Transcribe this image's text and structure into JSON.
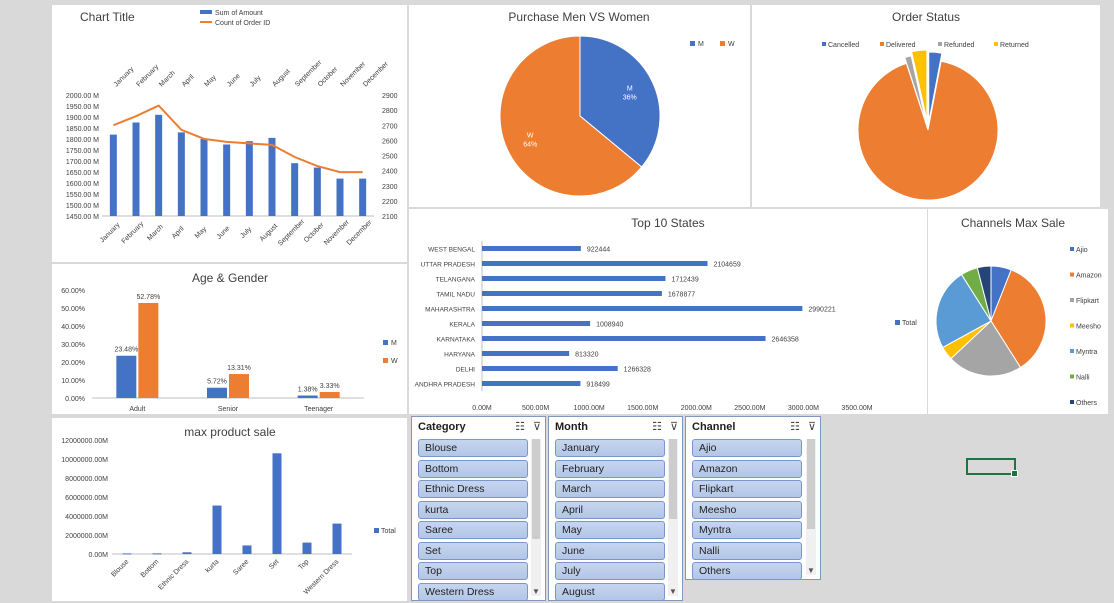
{
  "sales_panel": {
    "title": "Chart Title",
    "legend": [
      "Sum of Amount",
      "Count of Order ID"
    ],
    "colors": [
      "#4472c4",
      "#ed7d31"
    ]
  },
  "purchase_panel": {
    "title": "Purchase Men VS Women",
    "legend": [
      "M",
      "W"
    ]
  },
  "status_panel": {
    "title": "Order Status",
    "legend": [
      "Cancelled",
      "Delivered",
      "Refunded",
      "Returned"
    ]
  },
  "age_panel": {
    "title": "Age & Gender",
    "legend": [
      "M",
      "W"
    ]
  },
  "states_panel": {
    "title": "Top 10 States"
  },
  "channels_panel": {
    "title": "Channels  Max Sale",
    "legend_total": "Total"
  },
  "product_panel": {
    "title": "max product sale",
    "legend_total": "Total"
  },
  "slicers": {
    "category": {
      "title": "Category",
      "items": [
        "Blouse",
        "Bottom",
        "Ethnic Dress",
        "kurta",
        "Saree",
        "Set",
        "Top",
        "Western Dress"
      ]
    },
    "month": {
      "title": "Month",
      "items": [
        "January",
        "February",
        "March",
        "April",
        "May",
        "June",
        "July",
        "August"
      ]
    },
    "channel": {
      "title": "Channel",
      "items": [
        "Ajio",
        "Amazon",
        "Flipkart",
        "Meesho",
        "Myntra",
        "Nalli",
        "Others"
      ]
    }
  },
  "chart_data": [
    {
      "type": "bar",
      "title": "Chart Title",
      "categories": [
        "January",
        "February",
        "March",
        "April",
        "May",
        "June",
        "July",
        "August",
        "September",
        "October",
        "November",
        "December"
      ],
      "series": [
        {
          "name": "Sum of Amount",
          "values": [
            1820,
            1875,
            1910,
            1830,
            1800,
            1775,
            1790,
            1805,
            1690,
            1670,
            1620,
            1620
          ]
        },
        {
          "name": "Count of Order ID",
          "values": [
            2700,
            2760,
            2830,
            2670,
            2610,
            2590,
            2580,
            2570,
            2490,
            2430,
            2390,
            2390
          ]
        }
      ],
      "ylim": [
        1450,
        2000
      ],
      "y2lim": [
        2100,
        2900
      ],
      "yticks": [
        "2000.00 M",
        "1950.00 M",
        "1900.00 M",
        "1850.00 M",
        "1800.00 M",
        "1750.00 M",
        "1700.00 M",
        "1650.00 M",
        "1600.00 M",
        "1550.00 M",
        "1500.00 M",
        "1450.00 M"
      ],
      "y2ticks": [
        "2900",
        "2800",
        "2700",
        "2600",
        "2500",
        "2400",
        "2300",
        "2200",
        "2100"
      ]
    },
    {
      "type": "pie",
      "title": "Purchase Men VS Women",
      "categories": [
        "M",
        "W"
      ],
      "values": [
        36,
        64
      ],
      "labels": [
        "M\n36%",
        "W\n64%"
      ],
      "colors": [
        "#4472c4",
        "#ed7d31"
      ]
    },
    {
      "type": "pie",
      "title": "Order Status",
      "categories": [
        "Cancelled",
        "Delivered",
        "Refunded",
        "Returned"
      ],
      "values": [
        3,
        92,
        1.5,
        3.5
      ],
      "colors": [
        "#4472c4",
        "#ed7d31",
        "#a5a5a5",
        "#ffc000"
      ]
    },
    {
      "type": "bar",
      "title": "Age & Gender",
      "categories": [
        "Adult",
        "Senior",
        "Teenager"
      ],
      "series": [
        {
          "name": "M",
          "values": [
            23.48,
            5.72,
            1.38
          ],
          "labels": [
            "23.48%",
            "5.72%",
            "1.38%"
          ]
        },
        {
          "name": "W",
          "values": [
            52.78,
            13.31,
            3.33
          ],
          "labels": [
            "52.78%",
            "13.31%",
            "3.33%"
          ]
        }
      ],
      "ylim": [
        0,
        60
      ],
      "yticks": [
        "60.00%",
        "50.00%",
        "40.00%",
        "30.00%",
        "20.00%",
        "10.00%",
        "0.00%"
      ]
    },
    {
      "type": "bar",
      "orientation": "horizontal",
      "title": "Top 10 States",
      "categories": [
        "WEST BENGAL",
        "UTTAR PRADESH",
        "TELANGANA",
        "TAMIL NADU",
        "MAHARASHTRA",
        "KERALA",
        "KARNATAKA",
        "HARYANA",
        "DELHI",
        "ANDHRA PRADESH"
      ],
      "values": [
        922444,
        2104659,
        1712439,
        1678877,
        2990221,
        1008940,
        2646358,
        813320,
        1266328,
        918499
      ],
      "xlim": [
        0,
        3500000
      ],
      "xticks": [
        "0.00M",
        "500.00M",
        "1000.00M",
        "1500.00M",
        "2000.00M",
        "2500.00M",
        "3000.00M",
        "3500.00M"
      ]
    },
    {
      "type": "pie",
      "title": "Channels  Max Sale",
      "categories": [
        "Ajio",
        "Amazon",
        "Flipkart",
        "Meesho",
        "Myntra",
        "Nalli",
        "Others"
      ],
      "values": [
        6,
        35,
        22,
        4,
        24,
        5,
        4
      ],
      "colors": [
        "#4472c4",
        "#ed7d31",
        "#a5a5a5",
        "#ffc000",
        "#5b9bd5",
        "#70ad47",
        "#264478"
      ]
    },
    {
      "type": "bar",
      "title": "max product sale",
      "categories": [
        "Blouse",
        "Bottom",
        "Ethnic Dress",
        "kurta",
        "Saree",
        "Set",
        "Top",
        "Western Dress"
      ],
      "values": [
        60000,
        70000,
        180000,
        5100000,
        900000,
        10600000,
        1200000,
        3200000
      ],
      "ylim": [
        0,
        12000000
      ],
      "yticks": [
        "12000000.00M",
        "10000000.00M",
        "8000000.00M",
        "6000000.00M",
        "4000000.00M",
        "2000000.00M",
        "0.00M"
      ]
    }
  ]
}
